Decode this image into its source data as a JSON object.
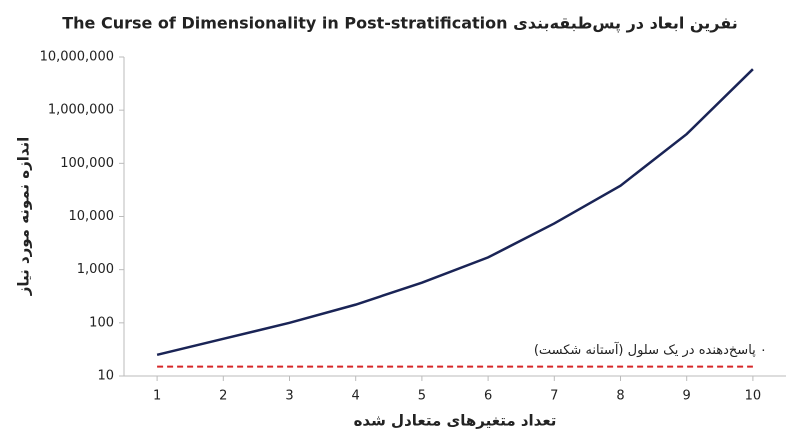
{
  "chart_data": {
    "type": "line",
    "title": "نفرین ابعاد در پس‌طبقه‌بندی The Curse of Dimensionality in Post-stratification",
    "x_label": "تعداد متغیرهای متعادل شده",
    "y_label": "اندازه نمونه مورد نیاز",
    "x": [
      1,
      2,
      3,
      4,
      5,
      6,
      7,
      8,
      9,
      10
    ],
    "series": [
      {
        "color": "#1a2456",
        "values": [
          25,
          50,
          100,
          220,
          570,
          1700,
          7400,
          38000,
          355000,
          5900000
        ]
      }
    ],
    "threshold": {
      "value": 15,
      "label": "۰ پاسخ‌دهنده در یک سلول (آستانه شکست)",
      "color": "#d62728"
    },
    "xlim": [
      0.5,
      10.5
    ],
    "xticks": [
      1,
      2,
      3,
      4,
      5,
      6,
      7,
      8,
      9,
      10
    ],
    "ylim": [
      10,
      10000000
    ],
    "yticks": [
      10,
      100,
      {
        "value": 1000,
        "label": "1,000"
      },
      {
        "value": 10000,
        "label": "10,000"
      },
      {
        "value": 100000,
        "label": "100,000"
      },
      {
        "value": 1000000,
        "label": "1,000,000"
      },
      {
        "value": 10000000,
        "label": "10,000,000"
      }
    ],
    "log_y": true
  }
}
